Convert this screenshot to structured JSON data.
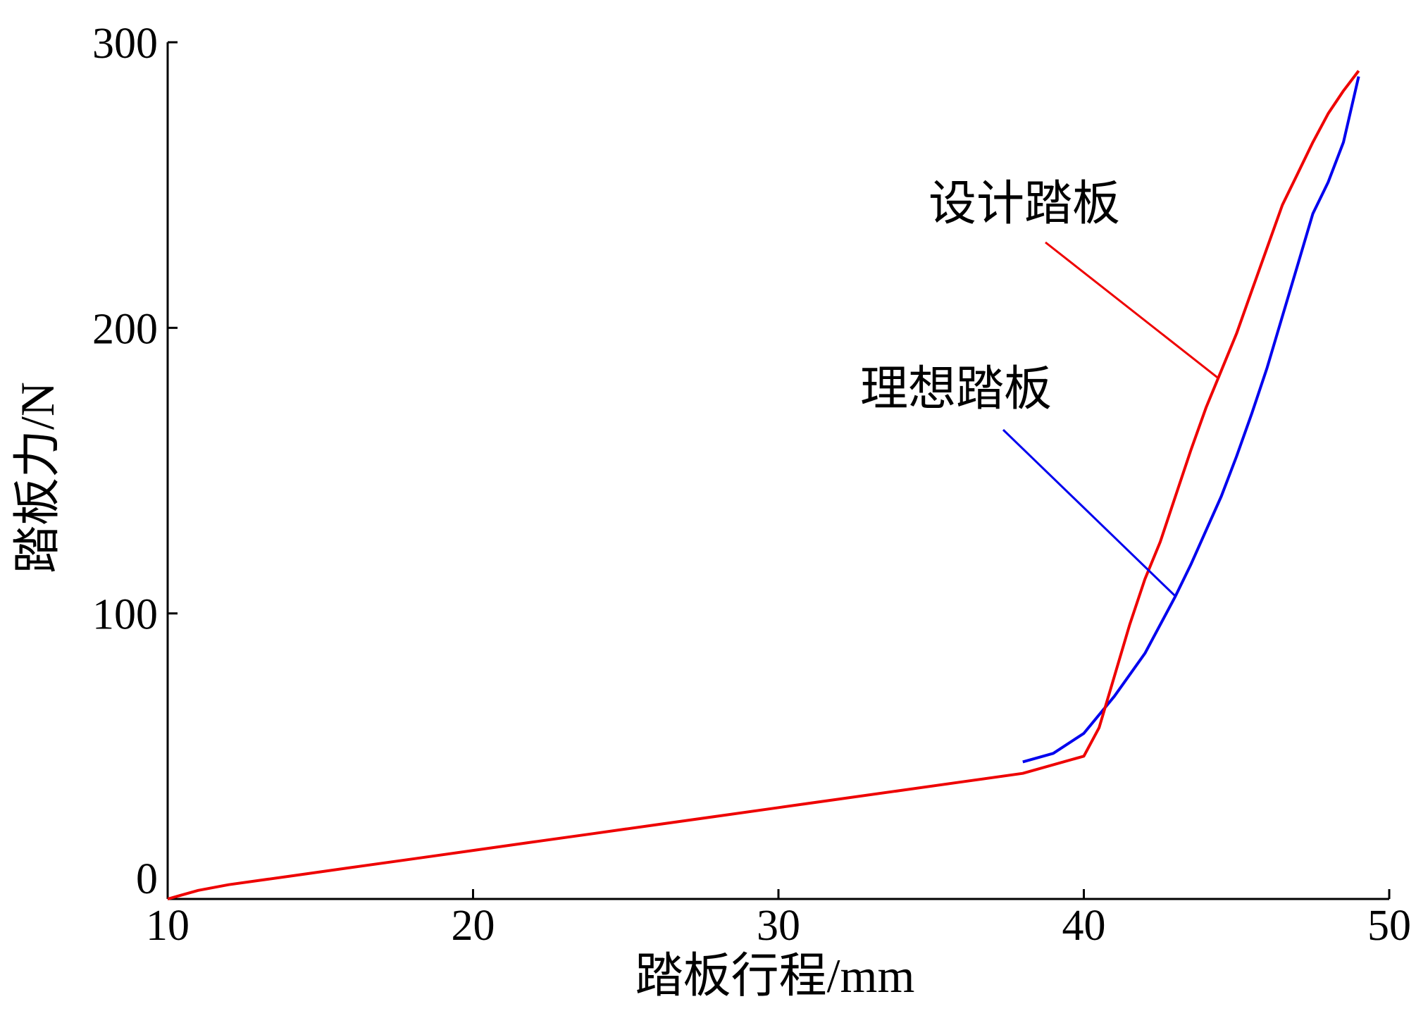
{
  "chart_data": {
    "type": "line",
    "xlabel": "踏板行程/mm",
    "ylabel": "踏板力/N",
    "xlim": [
      10,
      50
    ],
    "ylim": [
      0,
      300
    ],
    "xticks": [
      "10",
      "20",
      "30",
      "40",
      "50"
    ],
    "yticks": [
      "0",
      "100",
      "200",
      "300"
    ],
    "grid": false,
    "series": [
      {
        "name": "理想踏板",
        "color": "#0000ee",
        "x": [
          38.0,
          39.0,
          40.0,
          41.0,
          42.0,
          43.0,
          43.5,
          44.0,
          44.5,
          45.0,
          45.5,
          46.0,
          46.5,
          47.0,
          47.5,
          48.0,
          48.5,
          49.0
        ],
        "y": [
          48,
          51,
          58,
          71,
          86,
          106,
          117,
          129,
          141,
          155,
          170,
          186,
          204,
          222,
          240,
          251,
          265,
          288
        ]
      },
      {
        "name": "设计踏板",
        "color": "#ee0000",
        "x": [
          10.0,
          11.0,
          12.0,
          14.0,
          16.0,
          18.0,
          20.0,
          22.0,
          24.0,
          26.0,
          28.0,
          30.0,
          32.0,
          34.0,
          36.0,
          38.0,
          40.0,
          40.5,
          41.0,
          41.5,
          42.0,
          42.5,
          43.0,
          43.5,
          44.0,
          44.5,
          45.0,
          45.5,
          46.0,
          46.5,
          47.0,
          47.5,
          48.0,
          48.5,
          49.0
        ],
        "y": [
          0,
          3,
          5,
          8,
          11,
          14,
          17,
          20,
          23,
          26,
          29,
          32,
          35,
          38,
          41,
          44,
          50,
          60,
          78,
          96,
          112,
          125,
          141,
          157,
          172,
          185,
          198,
          213,
          228,
          243,
          254,
          265,
          275,
          283,
          290
        ]
      }
    ],
    "annotations": [
      {
        "text": "设计踏板",
        "series": 1,
        "at_x": 44.4
      },
      {
        "text": "理想踏板",
        "series": 0,
        "at_x": 43.0
      }
    ]
  }
}
